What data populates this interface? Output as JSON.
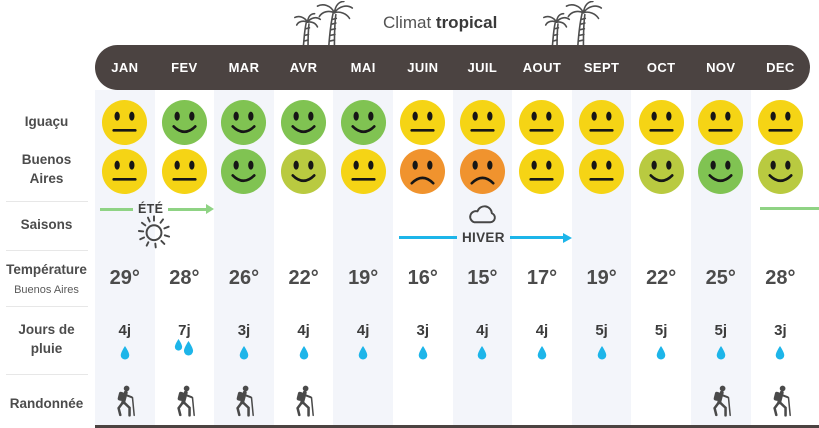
{
  "header": {
    "title_regular": "Climat",
    "title_bold": "tropical",
    "months": [
      "JAN",
      "FEV",
      "MAR",
      "AVR",
      "MAI",
      "JUIN",
      "JUIL",
      "AOUT",
      "SEPT",
      "OCT",
      "NOV",
      "DEC"
    ]
  },
  "rows": {
    "iguacu": {
      "label": "Iguaçu",
      "faces": [
        "neutral:yellow",
        "happy:green",
        "happy:green",
        "happy:green",
        "happy:green",
        "neutral:yellow",
        "neutral:yellow",
        "neutral:yellow",
        "neutral:yellow",
        "neutral:yellow",
        "neutral:yellow",
        "neutral:yellow"
      ]
    },
    "buenos_aires": {
      "label_line1": "Buenos",
      "label_line2": "Aires",
      "faces": [
        "neutral:yellow",
        "neutral:yellow",
        "happy:green",
        "happy:olive",
        "neutral:yellow",
        "sad:orange",
        "sad:orange",
        "neutral:yellow",
        "neutral:yellow",
        "happy:olive",
        "happy:green",
        "happy:olive"
      ]
    },
    "saisons": {
      "label": "Saisons",
      "summer": "ÉTÉ",
      "winter": "HIVER"
    },
    "temperature": {
      "label": "Température",
      "sublabel": "Buenos Aires",
      "values": [
        "29°",
        "28°",
        "26°",
        "22°",
        "19°",
        "16°",
        "15°",
        "17°",
        "19°",
        "22°",
        "25°",
        "28°"
      ]
    },
    "rain": {
      "label_line1": "Jours de",
      "label_line2": "pluie",
      "values": [
        "4j",
        "7j",
        "3j",
        "4j",
        "4j",
        "3j",
        "4j",
        "4j",
        "5j",
        "5j",
        "5j",
        "3j"
      ],
      "drops": [
        1,
        2,
        1,
        1,
        1,
        1,
        1,
        1,
        1,
        1,
        1,
        1
      ]
    },
    "hiking": {
      "label": "Randonnée",
      "active": [
        1,
        1,
        1,
        1,
        0,
        0,
        0,
        0,
        0,
        0,
        1,
        1
      ]
    }
  },
  "icons": {
    "palms": "palm-trees-icon",
    "sun": "sun-icon",
    "cloud": "cloud-icon",
    "drop": "raindrop-icon",
    "hiker": "hiker-icon",
    "faces": [
      "happy-face-icon",
      "neutral-face-icon",
      "sad-face-icon"
    ]
  },
  "colors": {
    "bar": "#4b4341",
    "stripe": "#f3f5fa",
    "summer_green": "#8fd384",
    "winter_blue": "#1db5e9",
    "drop": "#1db5e9",
    "smiley": {
      "yellow": "#f5d415",
      "green": "#80c352",
      "olive": "#b9ca40",
      "orange": "#f0932e"
    }
  },
  "chart_data": {
    "type": "table",
    "title": "Climat tropical",
    "categories": [
      "JAN",
      "FEV",
      "MAR",
      "AVR",
      "MAI",
      "JUIN",
      "JUIL",
      "AOUT",
      "SEPT",
      "OCT",
      "NOV",
      "DEC"
    ],
    "series": [
      {
        "name": "Iguaçu (confort climat)",
        "values": [
          "moyen",
          "bon",
          "bon",
          "bon",
          "bon",
          "moyen",
          "moyen",
          "moyen",
          "moyen",
          "moyen",
          "moyen",
          "moyen"
        ]
      },
      {
        "name": "Buenos Aires (confort climat)",
        "values": [
          "moyen",
          "moyen",
          "bon",
          "assez bon",
          "moyen",
          "mauvais",
          "mauvais",
          "moyen",
          "moyen",
          "assez bon",
          "bon",
          "assez bon"
        ]
      },
      {
        "name": "Température Buenos Aires (°C)",
        "values": [
          29,
          28,
          26,
          22,
          19,
          16,
          15,
          17,
          19,
          22,
          25,
          28
        ]
      },
      {
        "name": "Jours de pluie (j)",
        "values": [
          4,
          7,
          3,
          4,
          4,
          3,
          4,
          4,
          5,
          5,
          5,
          3
        ]
      },
      {
        "name": "Randonnée possible",
        "values": [
          true,
          true,
          true,
          true,
          false,
          false,
          false,
          false,
          false,
          false,
          true,
          true
        ]
      }
    ],
    "annotations": [
      {
        "label": "ÉTÉ",
        "months": "JAN-FEV",
        "icon": "sun"
      },
      {
        "label": "HIVER",
        "months": "JUIN-AOUT",
        "icon": "cloud"
      },
      {
        "label": "ÉTÉ (retour)",
        "months": "DEC"
      }
    ]
  }
}
